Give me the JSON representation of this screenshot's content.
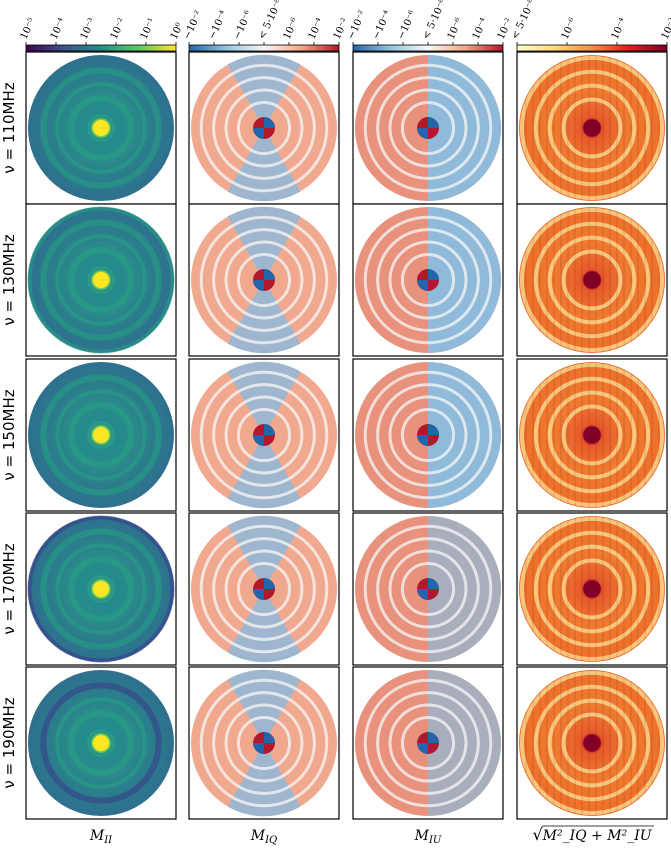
{
  "figure": {
    "rows": [
      {
        "nu_label": "ν = 110MHz"
      },
      {
        "nu_label": "ν = 130MHz"
      },
      {
        "nu_label": "ν = 150MHz"
      },
      {
        "nu_label": "ν = 170MHz"
      },
      {
        "nu_label": "ν = 190MHz"
      }
    ],
    "columns": [
      {
        "label": "M_II",
        "label_main": "M",
        "label_sub": "II",
        "cmap": "viridis",
        "colorbar_ticks": [
          "10⁻⁵",
          "10⁻⁴",
          "10⁻³",
          "10⁻²",
          "10⁻¹",
          "10⁰"
        ]
      },
      {
        "label": "M_IQ",
        "label_main": "M",
        "label_sub": "IQ",
        "cmap": "RdBu_r",
        "colorbar_ticks": [
          "−10⁻²",
          "−10⁻⁴",
          "−10⁻⁶",
          "< 5·10⁻⁸",
          "10⁻⁶",
          "10⁻⁴",
          "10⁻²"
        ]
      },
      {
        "label": "M_IU",
        "label_main": "M",
        "label_sub": "IU",
        "cmap": "RdBu_r",
        "colorbar_ticks": [
          "−10⁻²",
          "−10⁻⁴",
          "−10⁻⁶",
          "< 5·10⁻⁸",
          "10⁻⁶",
          "10⁻⁴",
          "10⁻²"
        ]
      },
      {
        "label": "√(M_IQ² + M_IU²)",
        "label_text": "M²_IQ + M²_IU",
        "cmap": "YlOrRd",
        "colorbar_ticks": [
          "< 5·10⁻⁸",
          "10⁻⁶",
          "10⁻⁴",
          "10⁻²"
        ]
      }
    ]
  },
  "chart_data": {
    "type": "heatmap",
    "panel_type": "polar beam Mueller matrix maps (all-sky)",
    "frequencies_MHz": [
      110,
      130,
      150,
      170,
      190
    ],
    "quantities": [
      "M_II",
      "M_IQ",
      "M_IU",
      "sqrt(M_IQ^2 + M_IU^2)"
    ],
    "color_scale": "log / symmetric log",
    "colors": {
      "viridis": [
        "#440154",
        "#3b528b",
        "#21908d",
        "#5dc963",
        "#fde725"
      ],
      "diverging": [
        "#2166ac",
        "#92c5de",
        "#f7f7f7",
        "#f4a582",
        "#b2182b"
      ],
      "ylorrd": [
        "#ffffcc",
        "#fed976",
        "#fd8d3c",
        "#e31a1c",
        "#800026"
      ]
    }
  }
}
